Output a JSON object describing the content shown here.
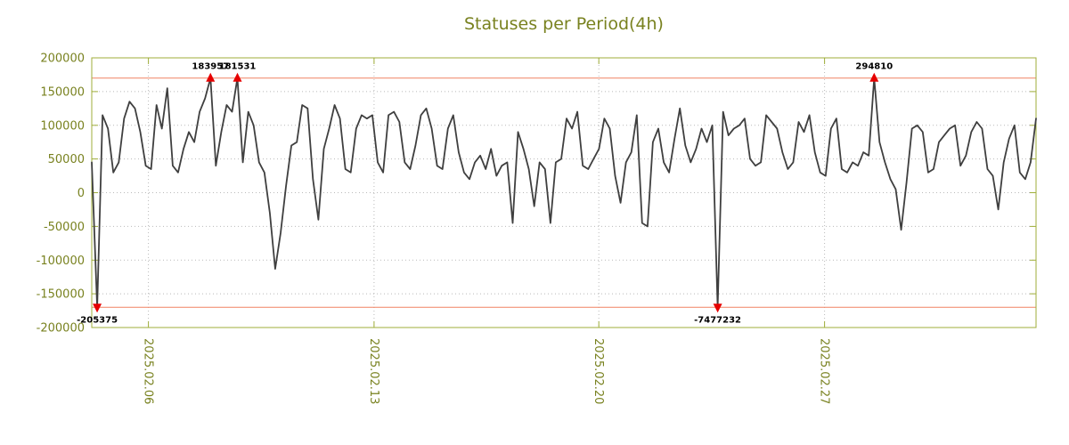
{
  "chart_data": {
    "type": "line",
    "title": "Statuses per Period(4h)",
    "xlabel": "",
    "ylabel": "",
    "legend": "none",
    "grid": true,
    "ylim": [
      -200000,
      200000
    ],
    "y_ticks": [
      200000,
      150000,
      100000,
      50000,
      0,
      -50000,
      -100000,
      -150000,
      -200000
    ],
    "x_ticks": [
      {
        "label": "2025.02.06",
        "pos": 0.06
      },
      {
        "label": "2025.02.13",
        "pos": 0.299
      },
      {
        "label": "2025.02.20",
        "pos": 0.537
      },
      {
        "label": "2025.02.27",
        "pos": 0.776
      }
    ],
    "clip_lines": {
      "upper": 170000,
      "lower": -170000
    },
    "series": [
      {
        "name": "statuses",
        "values": [
          45000,
          -205375,
          115000,
          95000,
          30000,
          45000,
          110000,
          135000,
          125000,
          90000,
          40000,
          35000,
          130000,
          95000,
          155000,
          40000,
          30000,
          65000,
          90000,
          75000,
          120000,
          140000,
          183957,
          40000,
          90000,
          130000,
          120000,
          181531,
          45000,
          120000,
          100000,
          45000,
          30000,
          -30000,
          -113000,
          -60000,
          10000,
          70000,
          75000,
          130000,
          125000,
          20000,
          -40000,
          65000,
          95000,
          130000,
          110000,
          35000,
          30000,
          95000,
          115000,
          110000,
          115000,
          45000,
          30000,
          115000,
          120000,
          105000,
          45000,
          35000,
          70000,
          115000,
          125000,
          95000,
          40000,
          35000,
          95000,
          115000,
          60000,
          30000,
          20000,
          45000,
          55000,
          35000,
          65000,
          25000,
          40000,
          45000,
          -45000,
          90000,
          65000,
          35000,
          -20000,
          45000,
          35000,
          -45000,
          45000,
          50000,
          110000,
          95000,
          120000,
          40000,
          35000,
          50000,
          65000,
          110000,
          95000,
          25000,
          -15000,
          45000,
          60000,
          115000,
          -45000,
          -50000,
          75000,
          95000,
          45000,
          30000,
          80000,
          125000,
          70000,
          45000,
          65000,
          95000,
          75000,
          100000,
          -7477232,
          120000,
          85000,
          95000,
          100000,
          110000,
          50000,
          40000,
          45000,
          115000,
          105000,
          95000,
          60000,
          35000,
          45000,
          105000,
          90000,
          115000,
          60000,
          30000,
          25000,
          95000,
          110000,
          35000,
          30000,
          45000,
          40000,
          60000,
          55000,
          294810,
          75000,
          45000,
          20000,
          5000,
          -55000,
          15000,
          95000,
          100000,
          90000,
          30000,
          35000,
          75000,
          85000,
          95000,
          100000,
          40000,
          55000,
          90000,
          105000,
          95000,
          35000,
          25000,
          -25000,
          45000,
          80000,
          100000,
          30000,
          20000,
          45000,
          110000
        ]
      }
    ],
    "annotations": [
      {
        "index": 1,
        "value": -205375,
        "label": "-205375",
        "direction": "down"
      },
      {
        "index": 22,
        "value": 183957,
        "label": "183957",
        "direction": "up"
      },
      {
        "index": 27,
        "value": 181531,
        "label": "181531",
        "direction": "up"
      },
      {
        "index": 116,
        "value": -7477232,
        "label": "-7477232",
        "direction": "down"
      },
      {
        "index": 145,
        "value": 294810,
        "label": "294810",
        "direction": "up"
      }
    ]
  },
  "colors": {
    "title": "#798220",
    "axis_text": "#798220",
    "border": "#9fae3a",
    "grid": "#b9b9b9",
    "line": "#3f3f3f",
    "clip_line": "#f08262",
    "marker": "#e60000",
    "annotation_text": "#000000",
    "background": "#ffffff"
  }
}
